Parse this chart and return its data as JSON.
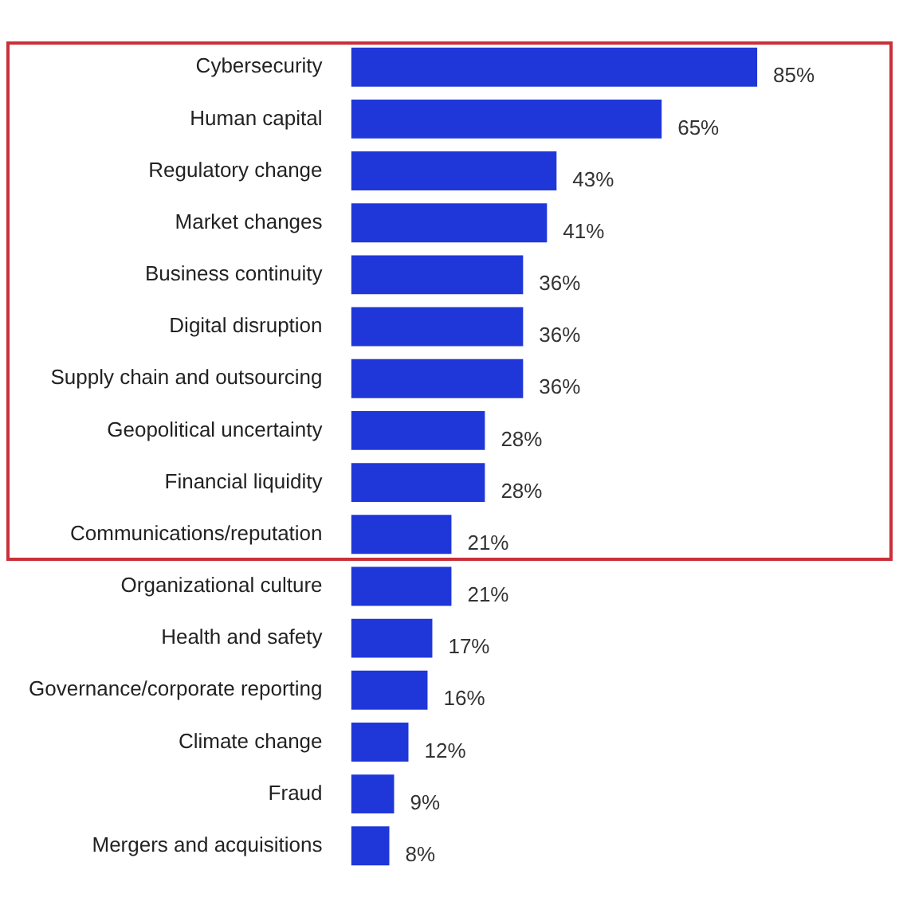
{
  "chart_data": {
    "type": "bar",
    "orientation": "horizontal",
    "tick_labels": "y",
    "grid": false,
    "legend": false,
    "color": "#1f37d8",
    "categories": [
      "Cybersecurity",
      "Human capital",
      "Regulatory change",
      "Market changes",
      "Business continuity",
      "Digital disruption",
      "Supply chain and outsourcing",
      "Geopolitical uncertainty",
      "Financial liquidity",
      "Communications/reputation",
      "Organizational culture",
      "Health and safety",
      "Governance/corporate reporting",
      "Climate change",
      "Fraud",
      "Mergers and acquisitions"
    ],
    "values": [
      85,
      65,
      43,
      41,
      36,
      36,
      36,
      28,
      28,
      21,
      21,
      17,
      16,
      12,
      9,
      8
    ],
    "value_labels": [
      "85%",
      "65%",
      "43%",
      "41%",
      "36%",
      "36%",
      "36%",
      "28%",
      "28%",
      "21%",
      "21%",
      "17%",
      "16%",
      "12%",
      "9%",
      "8%"
    ]
  }
}
